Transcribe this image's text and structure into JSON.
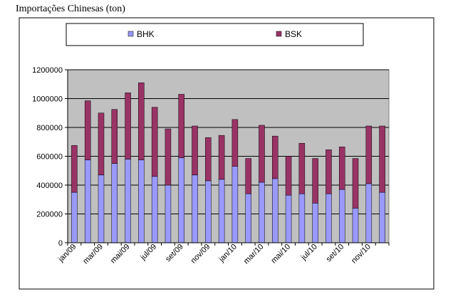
{
  "title": "Importações Chinesas (ton)",
  "colors": {
    "bhk": "#9999ff",
    "bsk": "#993366",
    "plot_bg": "#c0c0c0"
  },
  "chart_data": {
    "type": "bar",
    "stacked": true,
    "categories": [
      "jan/09",
      "fev/09",
      "mar/09",
      "abr/09",
      "mai/09",
      "jun/09",
      "jul/09",
      "ago/09",
      "set/09",
      "out/09",
      "nov/09",
      "dez/09",
      "jan/10",
      "fev/10",
      "mar/10",
      "abr/10",
      "mai/10",
      "jun/10",
      "jul/10",
      "ago/10",
      "set/10",
      "out/10",
      "nov/10",
      "dez/10"
    ],
    "tick_labels": [
      "jan/09",
      "mar/09",
      "mai/09",
      "jul/09",
      "set/09",
      "nov/09",
      "jan/10",
      "mar/10",
      "mai/10",
      "jul/10",
      "set/10",
      "nov/10"
    ],
    "series": [
      {
        "name": "BHK",
        "color": "#9999ff",
        "values": [
          350000,
          575000,
          470000,
          550000,
          580000,
          575000,
          460000,
          400000,
          590000,
          470000,
          430000,
          440000,
          530000,
          340000,
          420000,
          445000,
          330000,
          340000,
          275000,
          340000,
          370000,
          240000,
          410000,
          350000
        ]
      },
      {
        "name": "BSK",
        "color": "#993366",
        "values": [
          325000,
          410000,
          430000,
          375000,
          460000,
          535000,
          480000,
          390000,
          440000,
          340000,
          300000,
          305000,
          325000,
          245000,
          395000,
          295000,
          270000,
          350000,
          310000,
          305000,
          295000,
          345000,
          400000,
          460000
        ]
      }
    ],
    "ylim": [
      0,
      1200000
    ],
    "yticks": [
      0,
      200000,
      400000,
      600000,
      800000,
      1000000,
      1200000
    ],
    "legend_position": "top",
    "grid": true
  }
}
